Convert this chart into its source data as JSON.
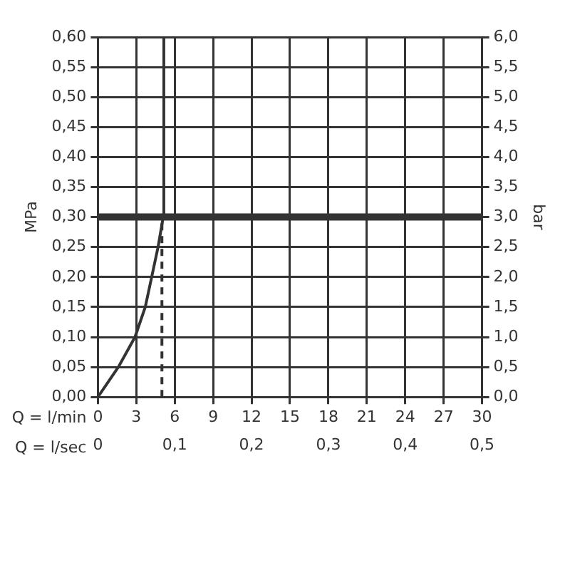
{
  "chart_data": {
    "type": "line",
    "xlabel": "Q = l/min",
    "x2label": "Q = l/sec",
    "ylabel": "MPa",
    "y2label": "bar",
    "series": [
      {
        "color": "#333333",
        "x": [
          0,
          1.6,
          2.9,
          3.7,
          4.2,
          4.7,
          5.1,
          5.15
        ],
        "values": [
          0,
          0.05,
          0.1,
          0.15,
          0.2,
          0.25,
          0.3,
          0.6
        ]
      },
      {
        "color": "#333333",
        "line_style": "dashed",
        "x": [
          5,
          5
        ],
        "values": [
          0,
          0.3
        ]
      }
    ],
    "xlim": [
      0,
      30
    ],
    "xticks": [
      0,
      3,
      6,
      9,
      12,
      15,
      18,
      21,
      24,
      27,
      30
    ],
    "x2lim": [
      0,
      0.5
    ],
    "x2ticks": [
      0,
      {
        "value": 0.1,
        "label": "0,1"
      },
      {
        "value": 0.2,
        "label": "0,2"
      },
      {
        "value": 0.3,
        "label": "0,3"
      },
      {
        "value": 0.4,
        "label": "0,4"
      },
      {
        "value": 0.5,
        "label": "0,5"
      }
    ],
    "ylim": [
      0,
      0.6
    ],
    "yticks": [
      {
        "value": 0,
        "label": "0,00"
      },
      {
        "value": 0.05,
        "label": "0,05"
      },
      {
        "value": 0.1,
        "label": "0,10"
      },
      {
        "value": 0.15,
        "label": "0,15"
      },
      {
        "value": 0.2,
        "label": "0,20"
      },
      {
        "value": 0.25,
        "label": "0,25"
      },
      {
        "value": 0.3,
        "label": "0,30"
      },
      {
        "value": 0.35,
        "label": "0,35"
      },
      {
        "value": 0.4,
        "label": "0,40"
      },
      {
        "value": 0.45,
        "label": "0,45"
      },
      {
        "value": 0.5,
        "label": "0,50"
      },
      {
        "value": 0.55,
        "label": "0,55"
      },
      {
        "value": 0.6,
        "label": "0,60"
      }
    ],
    "y2lim": [
      0,
      6
    ],
    "y2ticks": [
      {
        "value": 0,
        "label": "0,0"
      },
      {
        "value": 0.5,
        "label": "0,5"
      },
      {
        "value": 1,
        "label": "1,0"
      },
      {
        "value": 1.5,
        "label": "1,5"
      },
      {
        "value": 2,
        "label": "2,0"
      },
      {
        "value": 2.5,
        "label": "2,5"
      },
      {
        "value": 3,
        "label": "3,0"
      },
      {
        "value": 3.5,
        "label": "3,5"
      },
      {
        "value": 4,
        "label": "4,0"
      },
      {
        "value": 4.5,
        "label": "4,5"
      },
      {
        "value": 5,
        "label": "5,0"
      },
      {
        "value": 5.5,
        "label": "5,5"
      },
      {
        "value": 6,
        "label": "6,0"
      }
    ],
    "ref_lines": [
      {
        "axis": "y",
        "value": 0.3,
        "color": "#333333"
      }
    ],
    "grid": true,
    "legend": false,
    "marker": "none",
    "line_style": "solid"
  }
}
